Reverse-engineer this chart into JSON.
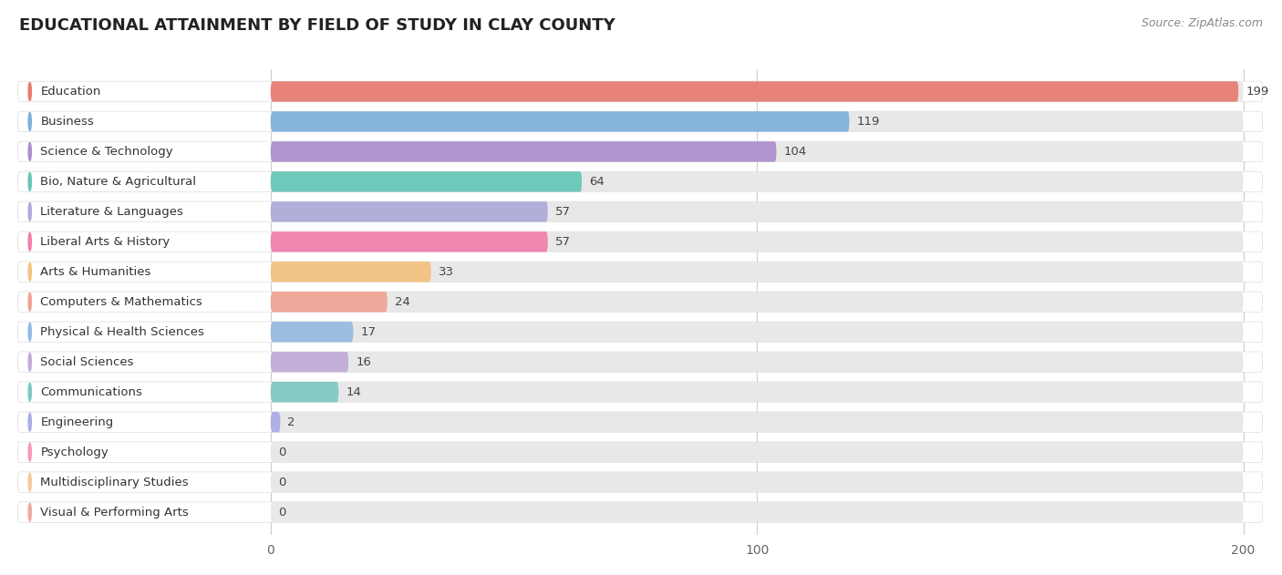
{
  "title": "EDUCATIONAL ATTAINMENT BY FIELD OF STUDY IN CLAY COUNTY",
  "source": "Source: ZipAtlas.com",
  "categories": [
    "Education",
    "Business",
    "Science & Technology",
    "Bio, Nature & Agricultural",
    "Literature & Languages",
    "Liberal Arts & History",
    "Arts & Humanities",
    "Computers & Mathematics",
    "Physical & Health Sciences",
    "Social Sciences",
    "Communications",
    "Engineering",
    "Psychology",
    "Multidisciplinary Studies",
    "Visual & Performing Arts"
  ],
  "values": [
    199,
    119,
    104,
    64,
    57,
    57,
    33,
    24,
    17,
    16,
    14,
    2,
    0,
    0,
    0
  ],
  "bar_colors": [
    "#e8756a",
    "#7aaddb",
    "#a98acb",
    "#5ec5b5",
    "#a8a8d8",
    "#f07aaa",
    "#f5c07a",
    "#f0a090",
    "#90b8e0",
    "#c0a8d8",
    "#78c8c0",
    "#a8a8e8",
    "#f598b0",
    "#f5c898",
    "#f0a898"
  ],
  "xlim": [
    0,
    200
  ],
  "xticks": [
    0,
    100,
    200
  ],
  "background_color": "#ffffff",
  "bar_bg_color": "#e8e8e8",
  "title_fontsize": 13,
  "label_fontsize": 9.5,
  "value_fontsize": 9.5
}
